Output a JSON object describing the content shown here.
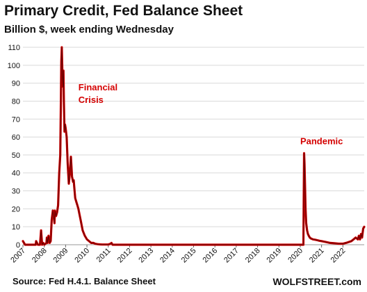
{
  "header": {
    "title": "Primary Credit, Fed Balance Sheet",
    "subtitle": "Billion $, week ending Wednesday"
  },
  "footer": {
    "source": "Source: Fed H.4.1. Balance Sheet",
    "brand": "WOLFSTREET.com"
  },
  "colors": {
    "line": "#cc0000",
    "line_dark": "#5a0000",
    "annotation": "#d40000",
    "grid": "#d9d9d9"
  },
  "chart_data": {
    "type": "line",
    "title": "Primary Credit, Fed Balance Sheet",
    "subtitle": "Billion $, week ending Wednesday",
    "ylim": [
      0,
      110
    ],
    "xlim": [
      2007.0,
      2023.0
    ],
    "yticks": [
      0,
      10,
      20,
      30,
      40,
      50,
      60,
      70,
      80,
      90,
      100,
      110
    ],
    "xticks": [
      "2007",
      "2008",
      "2009",
      "2010",
      "2011",
      "2012",
      "2013",
      "2014",
      "2015",
      "2016",
      "2017",
      "2018",
      "2019",
      "2020",
      "2021",
      "2022"
    ],
    "grid": "horizontal",
    "annotations": [
      {
        "text_lines": [
          "Financial",
          "Crisis"
        ],
        "x": 2009.6,
        "y": 86
      },
      {
        "text_lines": [
          "Pandemic"
        ],
        "x": 2020.0,
        "y": 56
      }
    ],
    "series": [
      {
        "x": [
          2007.0,
          2007.05,
          2007.1,
          2007.4,
          2007.6,
          2007.62,
          2007.7,
          2007.75,
          2007.8,
          2007.85,
          2007.9,
          2007.95,
          2008.0,
          2008.1,
          2008.12,
          2008.15,
          2008.2,
          2008.25,
          2008.3,
          2008.35,
          2008.4,
          2008.45,
          2008.48,
          2008.5,
          2008.55,
          2008.6,
          2008.65,
          2008.7,
          2008.75,
          2008.78,
          2008.8,
          2008.82,
          2008.85,
          2008.88,
          2008.9,
          2008.92,
          2008.95,
          2008.97,
          2009.0,
          2009.05,
          2009.1,
          2009.15,
          2009.2,
          2009.25,
          2009.3,
          2009.35,
          2009.38,
          2009.42,
          2009.45,
          2009.5,
          2009.55,
          2009.6,
          2009.65,
          2009.7,
          2009.75,
          2009.8,
          2009.9,
          2010.0,
          2010.1,
          2010.2,
          2010.3,
          2010.4,
          2010.5,
          2010.6,
          2010.7,
          2010.8,
          2010.9,
          2011.0,
          2011.1,
          2011.15,
          2011.2,
          2012.0,
          2013.0,
          2014.0,
          2015.0,
          2016.0,
          2017.0,
          2018.0,
          2019.0,
          2020.0,
          2020.15,
          2020.18,
          2020.2,
          2020.22,
          2020.25,
          2020.28,
          2020.32,
          2020.36,
          2020.4,
          2020.45,
          2020.5,
          2020.6,
          2020.7,
          2020.8,
          2020.9,
          2021.0,
          2021.2,
          2021.4,
          2021.6,
          2021.8,
          2022.0,
          2022.2,
          2022.4,
          2022.5,
          2022.6,
          2022.7,
          2022.75,
          2022.8,
          2022.85,
          2022.9,
          2022.95,
          2023.0
        ],
        "values": [
          2,
          1,
          0,
          0,
          0,
          2,
          0,
          0,
          0,
          8,
          0,
          1,
          0,
          1,
          4,
          1,
          5,
          1,
          2,
          14,
          19,
          15,
          12,
          19,
          16,
          18,
          22,
          40,
          50,
          80,
          102,
          110,
          95,
          88,
          97,
          80,
          63,
          67,
          65,
          60,
          45,
          34,
          40,
          49,
          38,
          35,
          36,
          30,
          26,
          24,
          22,
          20,
          17,
          14,
          11,
          8,
          5,
          3,
          2,
          1,
          1,
          0.5,
          0.3,
          0.2,
          0.1,
          0.1,
          0.1,
          0.1,
          0.5,
          1,
          0,
          0,
          0,
          0,
          0,
          0,
          0,
          0,
          0,
          0,
          0,
          51,
          45,
          35,
          20,
          12,
          8,
          6,
          5,
          4,
          3.5,
          3,
          2.8,
          2.5,
          2.2,
          2,
          1.5,
          1,
          0.8,
          0.6,
          0.6,
          1.2,
          2,
          3,
          4,
          3,
          5,
          3,
          6,
          4,
          9,
          10
        ]
      }
    ]
  }
}
